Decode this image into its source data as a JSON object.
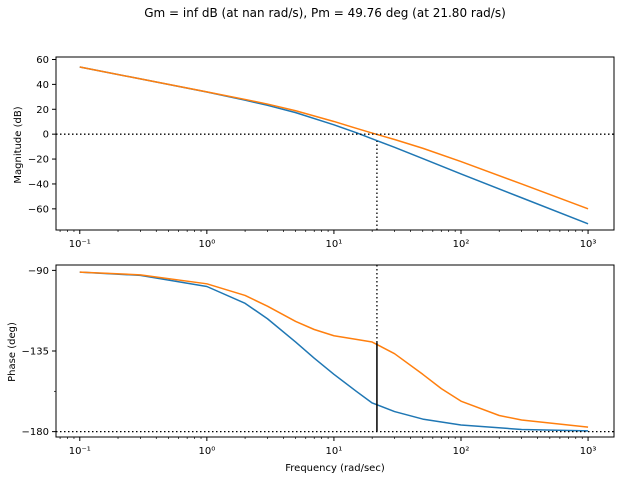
{
  "figure_title": "Gm = inf dB (at nan rad/s), Pm = 49.76 deg (at 21.80 rad/s)",
  "colors": {
    "series1": "#1f77b4",
    "series2": "#ff7f0e",
    "axis": "#000000",
    "margin_line": "#000000"
  },
  "chart_data": [
    {
      "type": "line",
      "title": "",
      "xlabel": "",
      "ylabel": "Magnitude (dB)",
      "xscale": "log",
      "xlim": [
        0.065,
        1600
      ],
      "ylim": [
        -77,
        62
      ],
      "xticks": [
        0.1,
        1,
        10,
        100,
        1000
      ],
      "xtick_labels": [
        "10⁻¹",
        "10⁰",
        "10¹",
        "10²",
        "10³"
      ],
      "yticks": [
        60,
        40,
        20,
        0,
        -20,
        -40,
        -60
      ],
      "ytick_labels": [
        "60",
        "40",
        "20",
        "0",
        "−20",
        "−40",
        "−60"
      ],
      "grid": false,
      "series": [
        {
          "x": [
            0.1,
            0.3,
            1,
            2,
            3,
            5,
            10,
            15,
            20,
            30,
            50,
            100,
            300,
            1000
          ],
          "y": [
            54,
            44.4,
            33.9,
            27.3,
            23.2,
            17.3,
            7.5,
            1.2,
            -3.7,
            -10.6,
            -19.6,
            -32.0,
            -51.1,
            -72.0
          ]
        },
        {
          "x": [
            0.1,
            0.3,
            1,
            2,
            3,
            5,
            10,
            15,
            20,
            30,
            50,
            100,
            300,
            1000
          ],
          "y": [
            54,
            44.4,
            34.0,
            27.9,
            24.2,
            18.8,
            10.2,
            4.7,
            0.9,
            -4.3,
            -11.3,
            -22.0,
            -40.0,
            -60.0
          ]
        }
      ],
      "reference_lines": [
        {
          "orientation": "horizontal",
          "value": 0,
          "style": "dotted"
        },
        {
          "orientation": "vertical",
          "value": 21.8,
          "style": "dotted",
          "from": "bottom",
          "to": -5.5
        }
      ]
    },
    {
      "type": "line",
      "title": "",
      "xlabel": "Frequency (rad/sec)",
      "ylabel": "Phase (deg)",
      "xscale": "log",
      "xlim": [
        0.065,
        1600
      ],
      "ylim": [
        -183,
        -87
      ],
      "xticks": [
        0.1,
        1,
        10,
        100,
        1000
      ],
      "xtick_labels": [
        "10⁻¹",
        "10⁰",
        "10¹",
        "10²",
        "10³"
      ],
      "yticks": [
        -90,
        -135,
        -180
      ],
      "ytick_labels": [
        "−90",
        "−135",
        "−180"
      ],
      "grid": false,
      "series": [
        {
          "x": [
            0.1,
            0.3,
            1,
            2,
            3,
            5,
            7,
            10,
            15,
            20,
            30,
            50,
            100,
            300,
            1000
          ],
          "y": [
            -91.0,
            -92.8,
            -99.0,
            -108.4,
            -117.0,
            -130.0,
            -139.0,
            -148.0,
            -157.5,
            -164.0,
            -168.8,
            -173.0,
            -176.3,
            -178.8,
            -179.6
          ]
        },
        {
          "x": [
            0.1,
            0.3,
            1,
            2,
            3,
            5,
            7,
            10,
            15,
            20,
            30,
            50,
            70,
            100,
            200,
            300,
            1000
          ],
          "y": [
            -91.0,
            -92.5,
            -97.5,
            -104.0,
            -110.0,
            -118.5,
            -123.0,
            -126.5,
            -128.5,
            -130.0,
            -136.5,
            -148.0,
            -156.0,
            -163.0,
            -171.0,
            -173.5,
            -177.5
          ]
        }
      ],
      "reference_lines": [
        {
          "orientation": "horizontal",
          "value": -180,
          "style": "dotted"
        },
        {
          "orientation": "vertical",
          "value": 21.8,
          "style": "dotted",
          "from": -87,
          "to": -130.2
        },
        {
          "orientation": "vertical",
          "value": 21.8,
          "style": "solid",
          "from": -130.2,
          "to": -180
        }
      ]
    }
  ]
}
